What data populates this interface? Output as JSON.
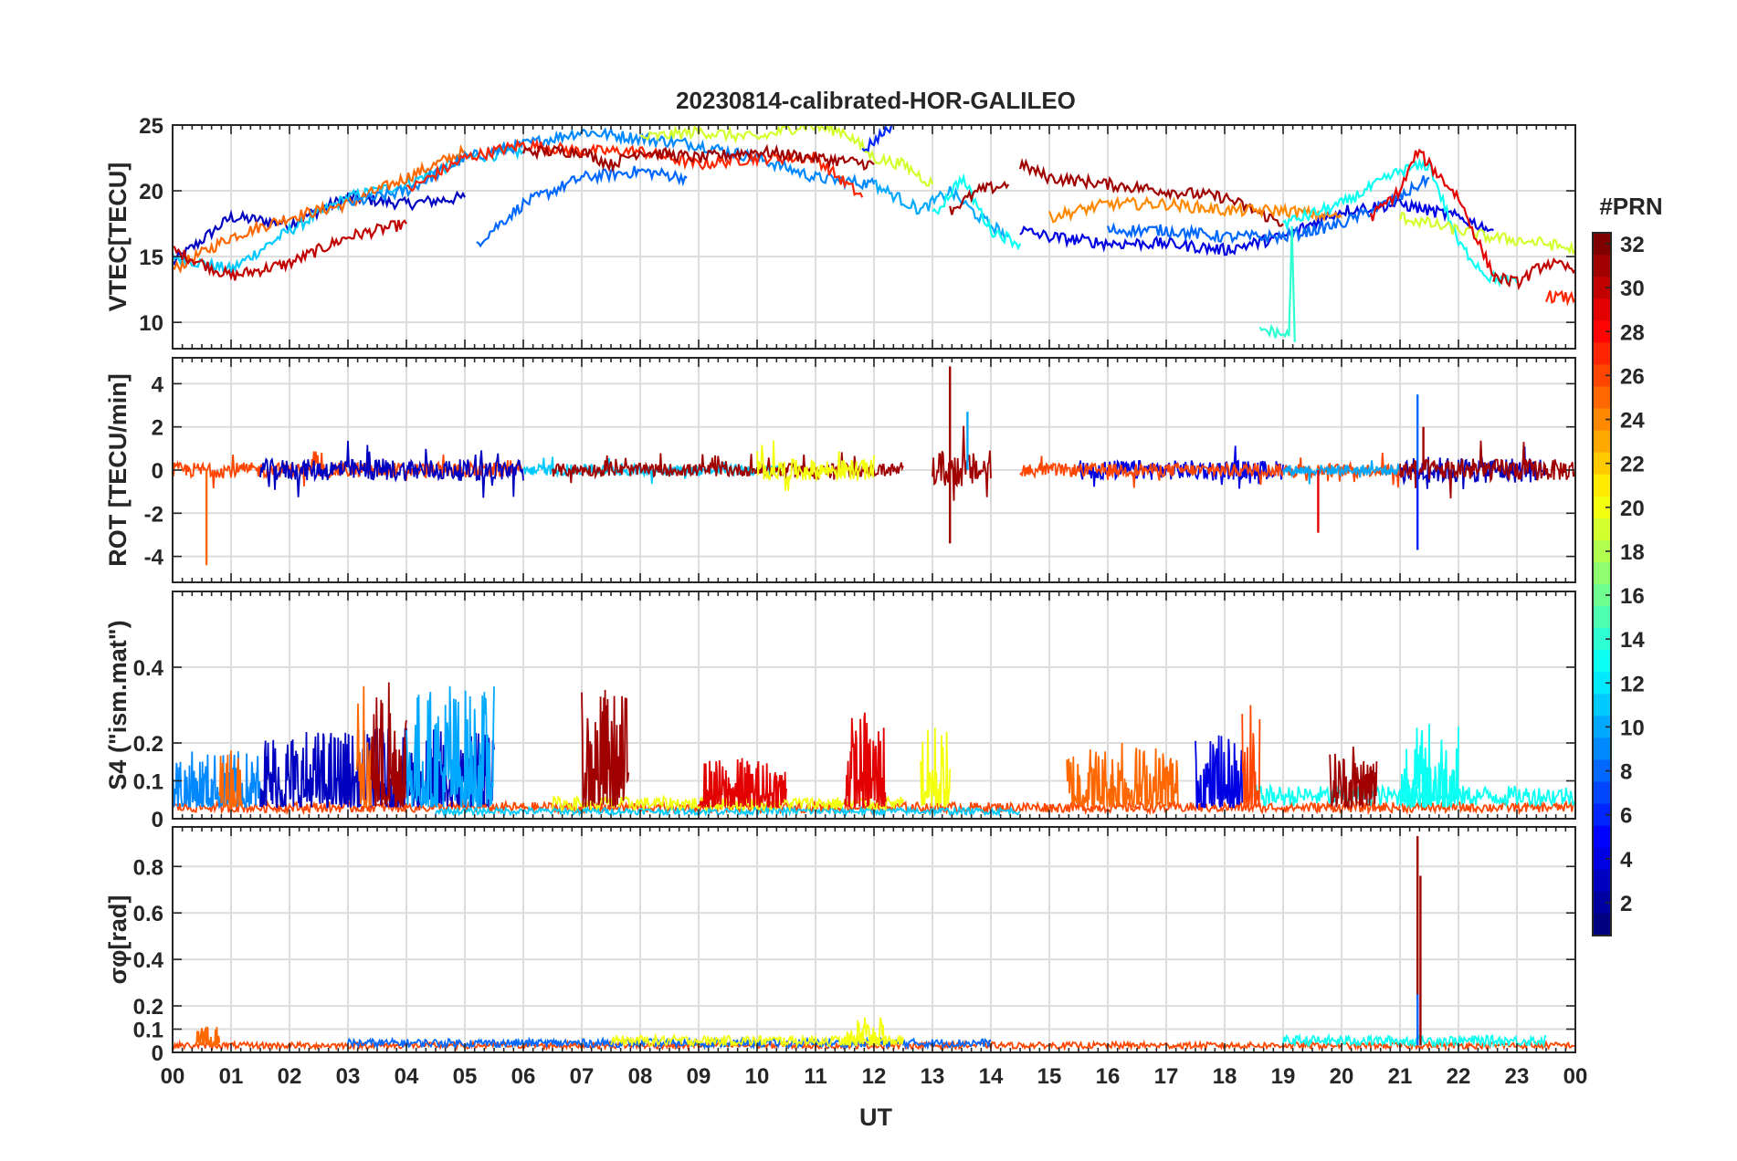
{
  "chart_data": {
    "type": "line",
    "title": "20230814-calibrated-HOR-GALILEO",
    "xlabel": "UT",
    "x_tick_labels": [
      "00",
      "01",
      "02",
      "03",
      "04",
      "05",
      "06",
      "07",
      "08",
      "09",
      "10",
      "11",
      "12",
      "13",
      "14",
      "15",
      "16",
      "17",
      "18",
      "19",
      "20",
      "21",
      "22",
      "23",
      "00"
    ],
    "xlim": [
      0,
      24
    ],
    "colorbar": {
      "title": "#PRN",
      "range": [
        1,
        32
      ],
      "ticks": [
        "32",
        "30",
        "28",
        "26",
        "24",
        "22",
        "20",
        "18",
        "16",
        "14",
        "12",
        "10",
        "8",
        "6",
        "4",
        "2"
      ],
      "colormap": "jet"
    },
    "panels": [
      {
        "ylabel": "VTEC[TECU]",
        "ylim": [
          8,
          25
        ],
        "ytick_labels": [
          "25",
          "20",
          "15",
          "10"
        ],
        "ytick_values": [
          25,
          20,
          15,
          10
        ],
        "series": [
          {
            "prn": 3,
            "x": [
              0.0,
              1.0,
              2.0,
              3.0,
              4.0,
              5.0
            ],
            "y": [
              14.5,
              18.0,
              17.5,
              19.5,
              19.0,
              19.5
            ]
          },
          {
            "prn": 11,
            "x": [
              0.0,
              1.0,
              2.0,
              3.0,
              4.0,
              5.0,
              6.0
            ],
            "y": [
              15.0,
              14.0,
              17.0,
              19.5,
              20.5,
              22.5,
              23.0
            ]
          },
          {
            "prn": 25,
            "x": [
              0.0,
              1.0,
              2.0,
              3.0,
              4.0,
              5.0
            ],
            "y": [
              14.0,
              16.5,
              18.0,
              19.0,
              21.0,
              23.0
            ]
          },
          {
            "prn": 30,
            "x": [
              0.0,
              1.0,
              2.0,
              3.0,
              4.0
            ],
            "y": [
              15.5,
              13.5,
              14.5,
              16.5,
              17.5
            ]
          },
          {
            "prn": 9,
            "x": [
              3.0,
              4.0,
              5.0,
              6.0,
              7.0,
              8.0,
              9.0,
              10.0,
              11.0,
              12.0
            ],
            "y": [
              19.0,
              20.0,
              22.5,
              23.5,
              24.5,
              24.0,
              23.5,
              22.5,
              21.0,
              20.5
            ]
          },
          {
            "prn": 8,
            "x": [
              5.2,
              6.0,
              7.0,
              8.0,
              8.8
            ],
            "y": [
              16.0,
              19.0,
              21.0,
              21.5,
              21.0
            ]
          },
          {
            "prn": 27,
            "x": [
              4.0,
              5.0,
              6.0,
              7.0,
              8.0,
              9.0,
              10.0,
              11.0,
              11.8
            ],
            "y": [
              20.0,
              22.5,
              23.5,
              23.0,
              23.0,
              22.0,
              22.5,
              22.5,
              19.5
            ]
          },
          {
            "prn": 31,
            "x": [
              6.0,
              7.0,
              7.5,
              8.0,
              9.0,
              10.0,
              11.0,
              12.0
            ],
            "y": [
              23.0,
              23.0,
              22.0,
              23.0,
              22.5,
              23.0,
              22.5,
              22.0
            ]
          },
          {
            "prn": 19,
            "x": [
              8.0,
              9.0,
              10.0,
              10.8,
              11.5,
              12.0,
              12.5,
              13.0
            ],
            "y": [
              24.0,
              24.5,
              24.0,
              25.0,
              24.5,
              22.5,
              22.0,
              20.5
            ]
          },
          {
            "prn": 6,
            "x": [
              11.8,
              12.3
            ],
            "y": [
              23.0,
              25.0
            ]
          },
          {
            "prn": 10,
            "x": [
              12.0,
              12.8,
              13.3,
              13.8,
              14.3
            ],
            "y": [
              20.5,
              18.5,
              20.0,
              18.0,
              16.5
            ]
          },
          {
            "prn": 13,
            "x": [
              13.0,
              13.5,
              14.0,
              14.5
            ],
            "y": [
              18.0,
              21.0,
              17.0,
              16.0
            ]
          },
          {
            "prn": 31,
            "x": [
              13.3,
              13.8,
              14.3
            ],
            "y": [
              18.5,
              20.0,
              20.5
            ]
          },
          {
            "prn": 31,
            "x": [
              14.5,
              15.0,
              16.0,
              17.0,
              18.0,
              19.0
            ],
            "y": [
              22.0,
              21.0,
              20.5,
              20.0,
              19.5,
              17.5
            ]
          },
          {
            "prn": 4,
            "x": [
              14.5,
              15.0,
              16.0,
              17.0,
              18.0,
              19.0,
              20.0,
              21.0,
              22.0,
              22.6
            ],
            "y": [
              17.0,
              16.5,
              16.0,
              16.0,
              15.5,
              16.5,
              18.5,
              19.0,
              18.0,
              17.0
            ]
          },
          {
            "prn": 24,
            "x": [
              15.0,
              16.0,
              17.0,
              18.0,
              19.0,
              20.0
            ],
            "y": [
              18.0,
              19.0,
              19.0,
              18.5,
              18.5,
              18.0
            ]
          },
          {
            "prn": 8,
            "x": [
              16.0,
              17.0,
              18.0,
              19.0,
              20.0,
              21.0,
              21.5
            ],
            "y": [
              17.0,
              17.0,
              16.5,
              16.5,
              17.5,
              19.5,
              21.0
            ]
          },
          {
            "prn": 13,
            "x": [
              19.0,
              20.0,
              21.0,
              21.5,
              22.0,
              22.5,
              23.0
            ],
            "y": [
              17.5,
              19.0,
              21.5,
              22.0,
              16.0,
              13.5,
              13.0
            ]
          },
          {
            "prn": 14,
            "x": [
              18.6,
              19.1,
              19.15,
              19.2
            ],
            "y": [
              9.5,
              9.0,
              17.0,
              8.5
            ]
          },
          {
            "prn": 19,
            "x": [
              21.0,
              22.0,
              22.5,
              23.5,
              24.0
            ],
            "y": [
              18.0,
              17.0,
              16.5,
              16.0,
              15.5
            ]
          },
          {
            "prn": 29,
            "x": [
              20.5,
              21.0,
              21.3,
              21.6,
              22.0,
              22.6
            ],
            "y": [
              18.0,
              20.0,
              23.0,
              21.5,
              19.5,
              13.5
            ]
          },
          {
            "prn": 30,
            "x": [
              22.6,
              23.0,
              23.5,
              24.0
            ],
            "y": [
              13.5,
              13.0,
              14.5,
              14.0
            ]
          },
          {
            "prn": 27,
            "x": [
              23.5,
              24.0
            ],
            "y": [
              12.0,
              11.8
            ]
          }
        ]
      },
      {
        "ylabel": "ROT [TECU/min]",
        "ylim": [
          -5.2,
          5.2
        ],
        "ytick_labels": [
          "4",
          "2",
          "0",
          "-2",
          "-4"
        ],
        "ytick_values": [
          4,
          2,
          0,
          -2,
          -4
        ],
        "noise_series": [
          {
            "prn": 26,
            "x0": 0.0,
            "x1": 6.0,
            "amplitude": 0.35
          },
          {
            "prn": 3,
            "x0": 1.5,
            "x1": 6.0,
            "amplitude": 0.5
          },
          {
            "prn": 11,
            "x0": 6.0,
            "x1": 10.5,
            "amplitude": 0.25
          },
          {
            "prn": 31,
            "x0": 6.5,
            "x1": 12.5,
            "amplitude": 0.3
          },
          {
            "prn": 20,
            "x0": 10.0,
            "x1": 12.0,
            "amplitude": 0.5
          },
          {
            "prn": 31,
            "x0": 13.0,
            "x1": 14.0,
            "amplitude": 0.8
          },
          {
            "prn": 4,
            "x0": 15.5,
            "x1": 19.0,
            "amplitude": 0.45
          },
          {
            "prn": 26,
            "x0": 14.5,
            "x1": 21.0,
            "amplitude": 0.3
          },
          {
            "prn": 10,
            "x0": 19.0,
            "x1": 21.0,
            "amplitude": 0.25
          },
          {
            "prn": 3,
            "x0": 21.0,
            "x1": 23.5,
            "amplitude": 0.6
          },
          {
            "prn": 31,
            "x0": 21.0,
            "x1": 24.0,
            "amplitude": 0.5
          }
        ],
        "spikes": [
          {
            "prn": 25,
            "x": 0.58,
            "y": -4.4
          },
          {
            "prn": 31,
            "x": 13.3,
            "y": 4.8
          },
          {
            "prn": 31,
            "x": 13.3,
            "y": -3.4
          },
          {
            "prn": 10,
            "x": 13.6,
            "y": 2.7
          },
          {
            "prn": 29,
            "x": 19.6,
            "y": -2.9
          },
          {
            "prn": 6,
            "x": 21.3,
            "y": -3.7
          },
          {
            "prn": 8,
            "x": 21.3,
            "y": 3.5
          },
          {
            "prn": 31,
            "x": 21.4,
            "y": 2.0
          }
        ]
      },
      {
        "ylabel": "S4 (\"ism.mat\")",
        "ylim": [
          0,
          0.6
        ],
        "ytick_labels": [
          "0.4",
          "0.2",
          "0.1",
          "0"
        ],
        "ytick_values": [
          0.4,
          0.2,
          0.1,
          0
        ],
        "baseline_series": [
          {
            "prn": 26,
            "x0": 0.0,
            "x1": 24.0,
            "level": 0.03
          },
          {
            "prn": 11,
            "x0": 4.5,
            "x1": 14.5,
            "level": 0.02
          },
          {
            "prn": 20,
            "x0": 6.5,
            "x1": 12.5,
            "level": 0.04
          },
          {
            "prn": 13,
            "x0": 18.5,
            "x1": 24.0,
            "level": 0.06
          }
        ],
        "bursts": [
          {
            "prn": 9,
            "x0": 0.0,
            "x1": 1.5,
            "peak": 0.18
          },
          {
            "prn": 25,
            "x0": 0.8,
            "x1": 1.2,
            "peak": 0.18
          },
          {
            "prn": 3,
            "x0": 1.5,
            "x1": 5.5,
            "peak": 0.24
          },
          {
            "prn": 25,
            "x0": 3.15,
            "x1": 3.4,
            "peak": 0.35
          },
          {
            "prn": 31,
            "x0": 3.4,
            "x1": 4.0,
            "peak": 0.36
          },
          {
            "prn": 10,
            "x0": 4.0,
            "x1": 5.5,
            "peak": 0.35
          },
          {
            "prn": 31,
            "x0": 7.0,
            "x1": 7.8,
            "peak": 0.34
          },
          {
            "prn": 29,
            "x0": 9.0,
            "x1": 10.5,
            "peak": 0.16
          },
          {
            "prn": 29,
            "x0": 11.5,
            "x1": 12.2,
            "peak": 0.28
          },
          {
            "prn": 20,
            "x0": 12.8,
            "x1": 13.3,
            "peak": 0.24
          },
          {
            "prn": 25,
            "x0": 15.3,
            "x1": 17.2,
            "peak": 0.2
          },
          {
            "prn": 4,
            "x0": 17.5,
            "x1": 18.3,
            "peak": 0.22
          },
          {
            "prn": 26,
            "x0": 18.3,
            "x1": 18.6,
            "peak": 0.3
          },
          {
            "prn": 31,
            "x0": 19.8,
            "x1": 20.6,
            "peak": 0.19
          },
          {
            "prn": 13,
            "x0": 21.0,
            "x1": 22.0,
            "peak": 0.25
          }
        ]
      },
      {
        "ylabel": "σφ[rad]",
        "ylim": [
          0,
          0.97
        ],
        "ytick_labels": [
          "0.8",
          "0.6",
          "0.4",
          "0.2",
          "0.1",
          "0"
        ],
        "ytick_values": [
          0.8,
          0.6,
          0.4,
          0.2,
          0.1,
          0
        ],
        "baseline_series": [
          {
            "prn": 26,
            "x0": 0.0,
            "x1": 24.0,
            "level": 0.03
          },
          {
            "prn": 8,
            "x0": 3.0,
            "x1": 14.0,
            "level": 0.04
          },
          {
            "prn": 20,
            "x0": 7.5,
            "x1": 12.5,
            "level": 0.05
          },
          {
            "prn": 13,
            "x0": 19.0,
            "x1": 23.5,
            "level": 0.05
          }
        ],
        "bursts": [
          {
            "prn": 25,
            "x0": 0.4,
            "x1": 0.8,
            "peak": 0.11
          },
          {
            "prn": 20,
            "x0": 11.5,
            "x1": 12.2,
            "peak": 0.15
          }
        ],
        "spikes": [
          {
            "prn": 31,
            "x": 21.3,
            "y": 0.93
          },
          {
            "prn": 31,
            "x": 21.35,
            "y": 0.76
          },
          {
            "prn": 8,
            "x": 21.3,
            "y": 0.25
          }
        ]
      }
    ]
  }
}
